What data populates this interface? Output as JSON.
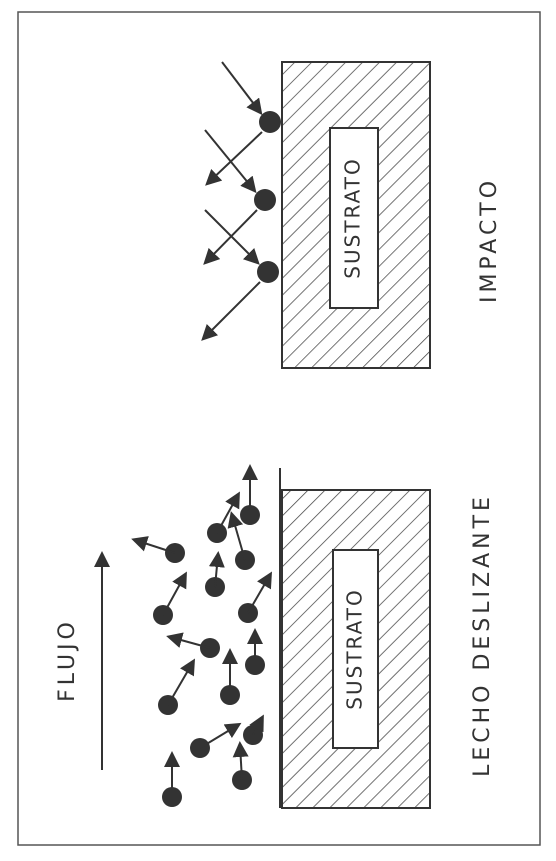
{
  "panels": [
    {
      "label": "IMPACTO",
      "substrate": "SUSTRATO"
    },
    {
      "label": "LECHO DESLIZANTE",
      "substrate": "SUSTRATO",
      "flow": "FLUJO"
    }
  ]
}
